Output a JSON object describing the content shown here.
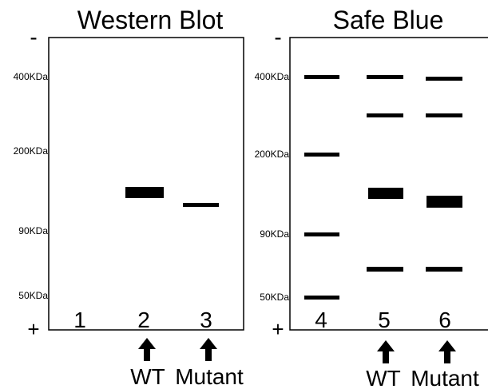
{
  "colors": {
    "band": "#000000",
    "frame": "#000000",
    "background": "#ffffff"
  },
  "panels": [
    {
      "title": "Western Blot",
      "minus_sign": "-",
      "plus_sign": "+",
      "markers": [
        "400KDa",
        "200KDa",
        "90KDa",
        "50KDa"
      ],
      "lanes": [
        {
          "number": "1",
          "bands": [],
          "arrow": false,
          "caption": ""
        },
        {
          "number": "2",
          "bands": [
            {
              "marker": "110KDa-ish",
              "weight": "thick"
            }
          ],
          "arrow": true,
          "caption": "WT"
        },
        {
          "number": "3",
          "bands": [
            {
              "marker": "below-2",
              "weight": "thin"
            }
          ],
          "arrow": true,
          "caption": "Mutant"
        }
      ]
    },
    {
      "title": "Safe Blue",
      "minus_sign": "-",
      "plus_sign": "+",
      "markers": [
        "400KDa",
        "200KDa",
        "90KDa",
        "50KDa"
      ],
      "lanes": [
        {
          "number": "4",
          "bands": [
            "400",
            "200",
            "90",
            "50"
          ],
          "arrow": false,
          "caption": ""
        },
        {
          "number": "5",
          "bands": [
            "a",
            "b",
            "c",
            "d"
          ],
          "arrow": true,
          "caption": "WT"
        },
        {
          "number": "6",
          "bands": [
            "a",
            "b",
            "c",
            "d"
          ],
          "arrow": true,
          "caption": "Mutant"
        }
      ]
    }
  ],
  "arrow_icon": "up-arrow-icon"
}
